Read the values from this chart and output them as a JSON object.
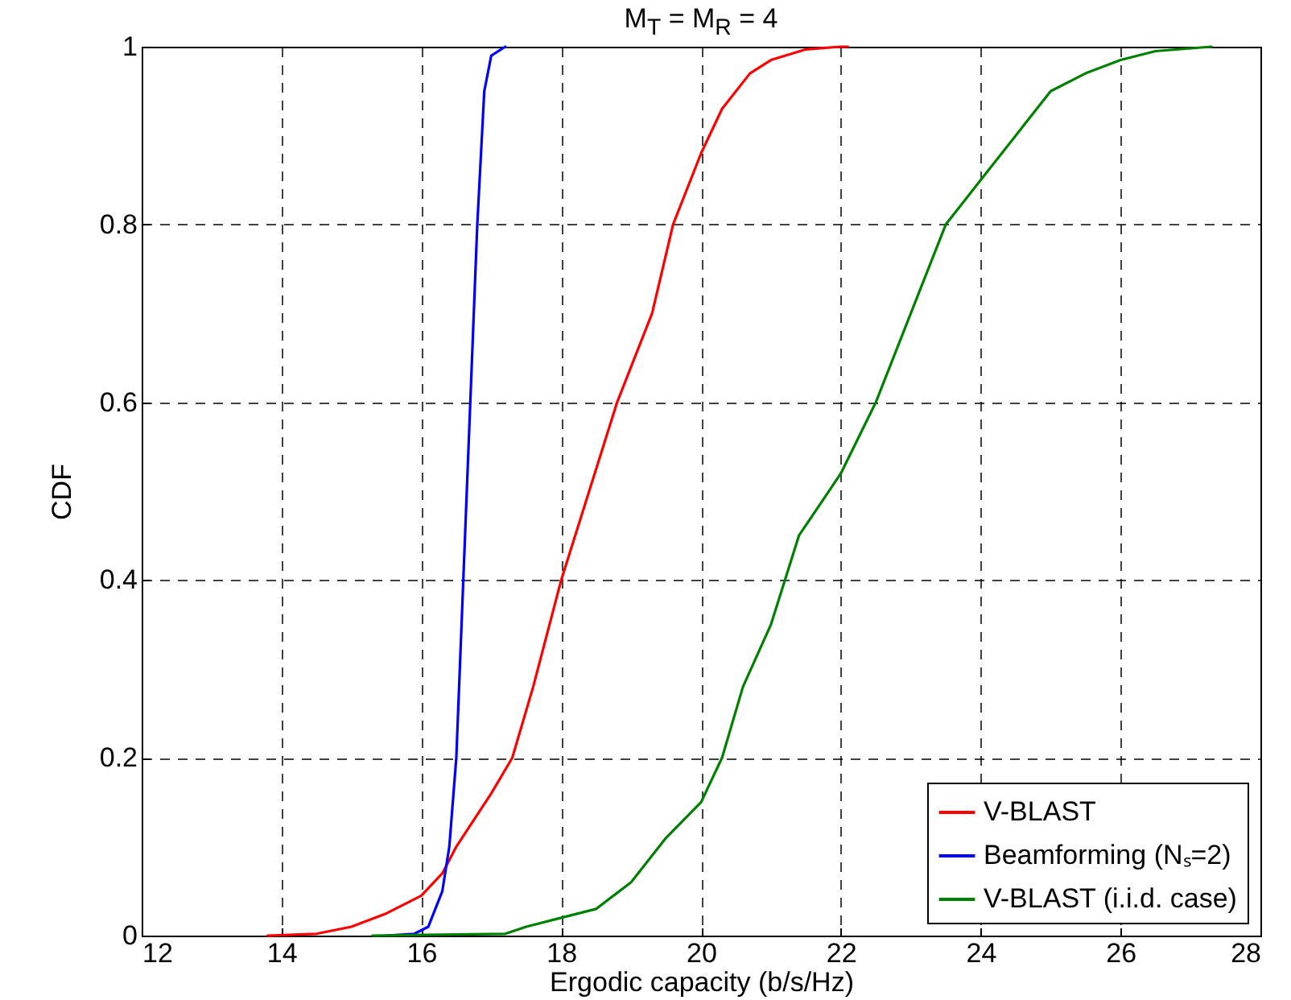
{
  "chart_data": {
    "type": "line",
    "title": "M$_{T}$ = M$_{R}$ = 4",
    "xlabel": "Ergodic capacity (b/s/Hz)",
    "ylabel": "CDF",
    "xlim": [
      12,
      28
    ],
    "xticks": [
      12,
      14,
      16,
      18,
      20,
      22,
      24,
      26,
      28
    ],
    "ylim": [
      0,
      1
    ],
    "yticks": [
      0,
      0.2,
      0.4,
      0.6,
      0.8,
      1
    ],
    "grid": true,
    "legend": "bottom right",
    "line_style": "solid",
    "series": [
      {
        "name": "V-BLAST",
        "color": "#ff0000",
        "x": [
          13.8,
          14.5,
          15,
          15.5,
          16,
          16.3,
          16.5,
          17,
          17.3,
          17.6,
          18,
          18.4,
          18.8,
          19.3,
          19.6,
          20,
          20.3,
          20.7,
          21,
          21.5,
          22,
          22.1
        ],
        "values": [
          0,
          0.002,
          0.01,
          0.025,
          0.045,
          0.07,
          0.1,
          0.16,
          0.2,
          0.28,
          0.4,
          0.5,
          0.6,
          0.7,
          0.8,
          0.88,
          0.93,
          0.97,
          0.985,
          0.997,
          1,
          1
        ]
      },
      {
        "name": "Beamforming (Nₛ=2)",
        "color": "#0000ff",
        "x": [
          15.5,
          15.9,
          16.1,
          16.3,
          16.4,
          16.5,
          16.6,
          16.7,
          16.8,
          16.9,
          17,
          17.2
        ],
        "values": [
          0,
          0.002,
          0.01,
          0.05,
          0.1,
          0.2,
          0.4,
          0.6,
          0.8,
          0.95,
          0.99,
          1
        ]
      },
      {
        "name": "V-BLAST (i.i.d. case)",
        "color": "#008000",
        "x": [
          15.3,
          17.2,
          17.5,
          18,
          18.5,
          19,
          19.5,
          20,
          20.3,
          20.6,
          21,
          21.4,
          22,
          22.5,
          23,
          23.5,
          24,
          24.5,
          25,
          25.5,
          26,
          26.5,
          27.3
        ],
        "values": [
          0,
          0.002,
          0.01,
          0.02,
          0.03,
          0.06,
          0.11,
          0.15,
          0.2,
          0.28,
          0.35,
          0.45,
          0.52,
          0.6,
          0.7,
          0.8,
          0.85,
          0.9,
          0.95,
          0.97,
          0.985,
          0.995,
          1
        ]
      }
    ]
  }
}
